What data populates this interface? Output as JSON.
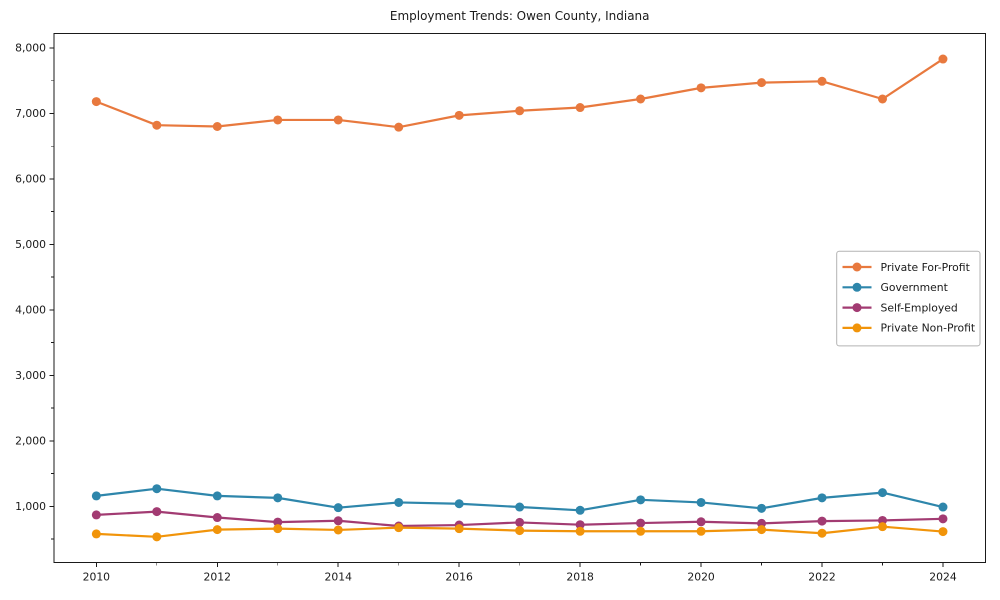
{
  "chart_data": {
    "type": "line",
    "title": "Employment Trends: Owen County, Indiana",
    "x": [
      2010,
      2011,
      2012,
      2013,
      2014,
      2015,
      2016,
      2017,
      2018,
      2019,
      2020,
      2021,
      2022,
      2023,
      2024
    ],
    "series": [
      {
        "name": "Private For-Profit",
        "color": "#E8793E",
        "values": [
          7180,
          6820,
          6800,
          6900,
          6900,
          6790,
          6970,
          7040,
          7090,
          7220,
          7390,
          7470,
          7490,
          7220,
          7830
        ]
      },
      {
        "name": "Government",
        "color": "#2E86AB",
        "values": [
          1160,
          1270,
          1160,
          1130,
          980,
          1060,
          1040,
          990,
          940,
          1100,
          1060,
          970,
          1130,
          1210,
          990
        ]
      },
      {
        "name": "Self-Employed",
        "color": "#A23B72",
        "values": [
          870,
          920,
          830,
          760,
          780,
          700,
          715,
          755,
          720,
          745,
          765,
          740,
          775,
          785,
          810
        ]
      },
      {
        "name": "Private Non-Profit",
        "color": "#F1940A",
        "values": [
          580,
          535,
          645,
          660,
          640,
          675,
          660,
          630,
          620,
          620,
          620,
          645,
          590,
          690,
          615
        ]
      }
    ],
    "xlabel": "",
    "ylabel": "",
    "xlim": [
      2009.3,
      2024.7
    ],
    "ylim": [
      140,
      8220
    ],
    "xticks": [
      2010,
      2012,
      2014,
      2016,
      2018,
      2020,
      2022,
      2024
    ],
    "xtick_labels": [
      "2010",
      "2012",
      "2014",
      "2016",
      "2018",
      "2020",
      "2022",
      "2024"
    ],
    "yticks": [
      1000,
      2000,
      3000,
      4000,
      5000,
      6000,
      7000,
      8000
    ],
    "ytick_labels": [
      "1,000",
      "2,000",
      "3,000",
      "4,000",
      "5,000",
      "6,000",
      "7,000",
      "8,000"
    ],
    "minor_tick_steps": {
      "x": 1,
      "y": 500
    },
    "grid": false,
    "legend": {
      "position": "center right",
      "labels": [
        "Private For-Profit",
        "Government",
        "Self-Employed",
        "Private Non-Profit"
      ]
    },
    "marker": "circle",
    "axis_color": "#1a1a1a",
    "legend_border_color": "#b3b3b3"
  }
}
